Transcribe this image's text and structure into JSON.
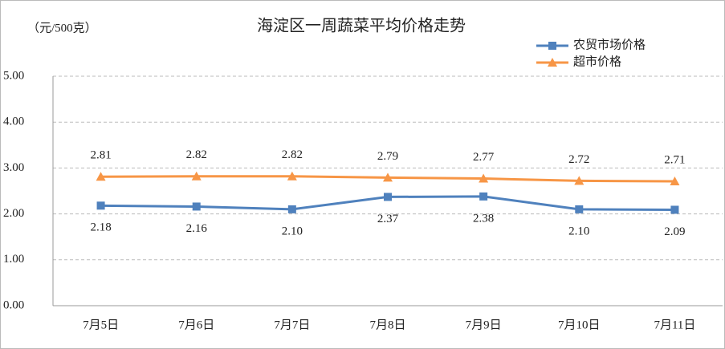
{
  "chart_data": {
    "type": "line",
    "title": "海淀区一周蔬菜平均价格走势",
    "y_label": "（元/500克）",
    "categories": [
      "7月5日",
      "7月6日",
      "7月7日",
      "7月8日",
      "7月9日",
      "7月10日",
      "7月11日"
    ],
    "series": [
      {
        "name": "农贸市场价格",
        "color": "#4f81bd",
        "marker": "square",
        "values": [
          2.18,
          2.16,
          2.1,
          2.37,
          2.38,
          2.1,
          2.09
        ],
        "value_labels": [
          "2.18",
          "2.16",
          "2.10",
          "2.37",
          "2.38",
          "2.10",
          "2.09"
        ]
      },
      {
        "name": "超市价格",
        "color": "#f79646",
        "marker": "triangle",
        "values": [
          2.81,
          2.82,
          2.82,
          2.79,
          2.77,
          2.72,
          2.71
        ],
        "value_labels": [
          "2.81",
          "2.82",
          "2.82",
          "2.79",
          "2.77",
          "2.72",
          "2.71"
        ]
      }
    ],
    "ylim": [
      0,
      5
    ],
    "yticks": [
      {
        "value": 0,
        "label": "0.00"
      },
      {
        "value": 1,
        "label": "1.00"
      },
      {
        "value": 2,
        "label": "2.00"
      },
      {
        "value": 3,
        "label": "3.00"
      },
      {
        "value": 4,
        "label": "4.00"
      },
      {
        "value": 5,
        "label": "5.00"
      }
    ],
    "grid": true,
    "legend": "top-right"
  }
}
